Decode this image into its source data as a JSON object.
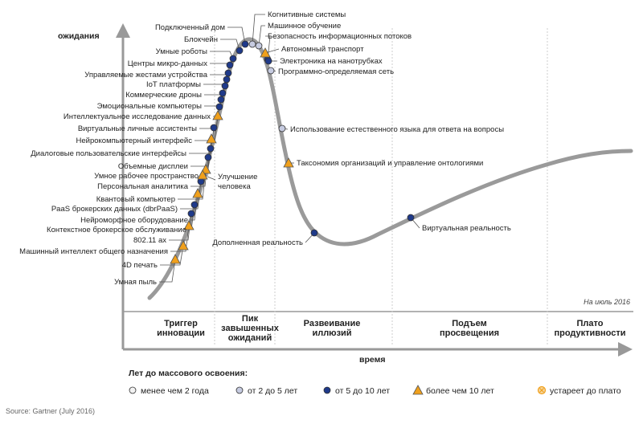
{
  "axes": {
    "y_label": "ожидания",
    "x_label": "время"
  },
  "as_of": "На июль 2016",
  "phases": [
    {
      "id": "trigger",
      "lines": [
        "Триггер",
        "инновации"
      ]
    },
    {
      "id": "peak",
      "lines": [
        "Пик",
        "завышенных",
        "ожиданий"
      ]
    },
    {
      "id": "trough",
      "lines": [
        "Развеивание",
        "иллюзий"
      ]
    },
    {
      "id": "slope",
      "lines": [
        "Подъем",
        "просвещения"
      ]
    },
    {
      "id": "plateau",
      "lines": [
        "Плато",
        "продуктивности"
      ]
    }
  ],
  "legend": {
    "title": "Лет до массового освоения:",
    "items": [
      {
        "key": "lt2",
        "label": "менее чем 2 года"
      },
      {
        "key": "2to5",
        "label": "от 2 до 5 лет"
      },
      {
        "key": "5to10",
        "label": "от 5 до 10 лет"
      },
      {
        "key": "gt10",
        "label": "более чем 10 лет"
      },
      {
        "key": "obsolete",
        "label": "устареет до плато"
      }
    ]
  },
  "marker_colors": {
    "5to10": "#1f3a8a",
    "gt10": "#f0a01c",
    "2to5": "#c6cbe0",
    "lt2": "#f2f2f2",
    "obsolete": "#f0a01c"
  },
  "source": "Source: Gartner (July 2016)",
  "technologies_left": [
    {
      "label": "Подключенный дом",
      "type": "5to10"
    },
    {
      "label": "Блокчейн",
      "type": "5to10"
    },
    {
      "label": "Умные роботы",
      "type": "5to10"
    },
    {
      "label": "Центры микро-данных",
      "type": "5to10"
    },
    {
      "label": "Управляемые жестами устройства",
      "type": "5to10"
    },
    {
      "label": "IoT платформы",
      "type": "5to10"
    },
    {
      "label": "Коммерческие дроны",
      "type": "5to10"
    },
    {
      "label": "Эмоциональные компьютеры",
      "type": "5to10"
    },
    {
      "label": "Интеллектуальное исследование данных",
      "type": "5to10"
    },
    {
      "label": "Виртуальные личные ассистенты",
      "type": "5to10"
    },
    {
      "label": "Нейрокомпьютерный интерфейс",
      "type": "gt10"
    },
    {
      "label": "Диалоговые пользовательские интерфейсы",
      "type": "5to10"
    },
    {
      "label": "Объемные дисплеи",
      "type": "gt10"
    },
    {
      "label": "Умное рабочее пространство",
      "type": "5to10"
    },
    {
      "label": "Персональная аналитика",
      "type": "5to10"
    },
    {
      "label": "Квантовый компьютер",
      "type": "gt10"
    },
    {
      "label": "PaaS брокерских данных (dbrPaaS)",
      "type": "5to10"
    },
    {
      "label": "Нейроморфное оборудование",
      "type": "gt10"
    },
    {
      "label": "Контекстное брокерское обслуживание",
      "type": "5to10"
    },
    {
      "label": "802.11 ax",
      "type": "5to10"
    },
    {
      "label": "Машинный интеллект общего назначения",
      "type": "gt10"
    },
    {
      "label": "4D печать",
      "type": "gt10"
    },
    {
      "label": "Умная пыль",
      "type": "gt10"
    }
  ],
  "human_aug": {
    "lines": [
      "Улучшение",
      "человека"
    ],
    "type": "gt10"
  },
  "technologies_right": [
    {
      "label": "Когнитивные системы",
      "type": "2to5"
    },
    {
      "label": "Машинное обучение",
      "type": "2to5"
    },
    {
      "label": "Безопасность информационных потоков",
      "type": "5to10"
    },
    {
      "label": "Автономный транспорт",
      "type": "gt10"
    },
    {
      "label": "Электроника на нанотрубках",
      "type": "5to10"
    },
    {
      "label": "Программно-определяемая сеть",
      "type": "2to5"
    },
    {
      "label": "Использование естественного языка для ответа на вопросы",
      "type": "2to5"
    },
    {
      "label": "Таксономия организаций и управление онтологиями",
      "type": "gt10"
    },
    {
      "label": "Виртуальная реальность",
      "type": "5to10"
    },
    {
      "label": "Дополненная реальность",
      "type": "5to10"
    }
  ]
}
